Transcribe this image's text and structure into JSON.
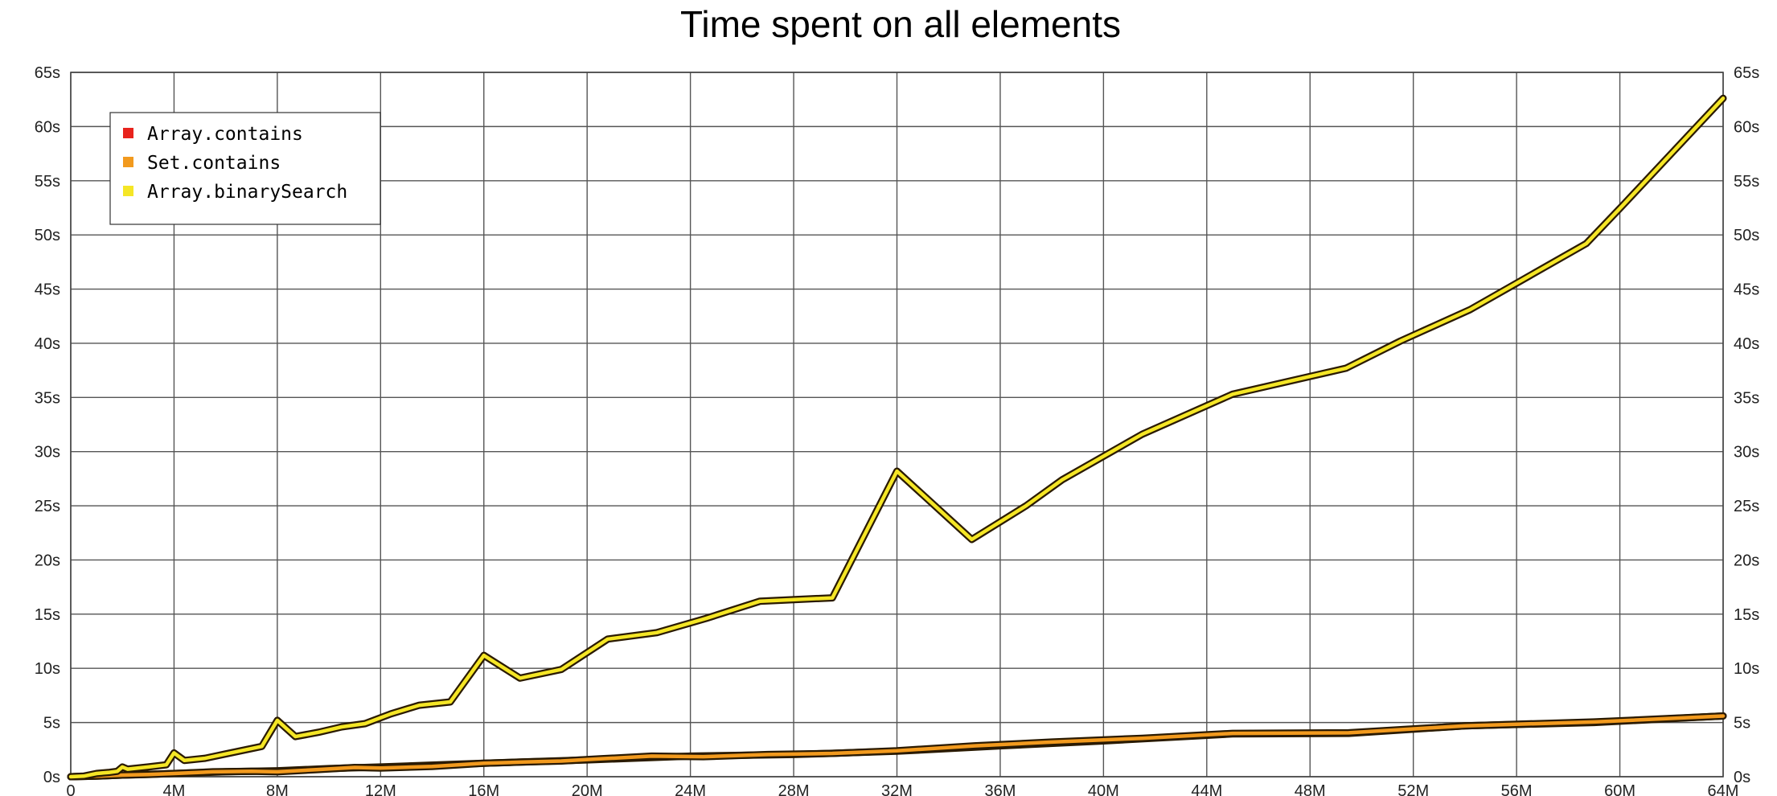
{
  "chart_data": {
    "type": "line",
    "title": "Time spent on all elements",
    "xlabel": "",
    "ylabel": "",
    "x_ticks": [
      "0",
      "4M",
      "8M",
      "12M",
      "16M",
      "20M",
      "24M",
      "28M",
      "32M",
      "36M",
      "40M",
      "44M",
      "48M",
      "52M",
      "56M",
      "60M",
      "64M"
    ],
    "y_ticks": [
      "0s",
      "5s",
      "10s",
      "15s",
      "20s",
      "25s",
      "30s",
      "35s",
      "40s",
      "45s",
      "50s",
      "55s",
      "60s",
      "65s"
    ],
    "xlim": [
      0,
      64000000
    ],
    "ylim": [
      0,
      65
    ],
    "grid": true,
    "legend_position": "top-left",
    "series": [
      {
        "name": "Array.contains",
        "color": "#e8231d",
        "x": [
          0,
          1000000,
          2000000,
          4000000,
          6000000,
          8000000,
          10000000,
          12000000,
          16000000,
          20000000,
          24000000,
          28000000,
          32000000,
          36000000,
          40000000,
          45000000,
          49500000,
          54000000,
          59000000,
          64000000
        ],
        "y": [
          0,
          0.05,
          0.15,
          0.3,
          0.45,
          0.55,
          0.75,
          0.9,
          1.25,
          1.55,
          1.9,
          2.05,
          2.35,
          2.85,
          3.3,
          3.95,
          4.0,
          4.7,
          5.0,
          5.6
        ]
      },
      {
        "name": "Set.contains",
        "color": "#f29a1e",
        "x": [
          0,
          1000000,
          2000000,
          3000000,
          4000000,
          5500000,
          7000000,
          8000000,
          9500000,
          11000000,
          12000000,
          14000000,
          16000000,
          17500000,
          19000000,
          20500000,
          22500000,
          24500000,
          27000000,
          29500000,
          32000000,
          35000000,
          38000000,
          41500000,
          45000000,
          49500000,
          54000000,
          59000000,
          64000000
        ],
        "y": [
          0,
          0.05,
          0.15,
          0.2,
          0.3,
          0.45,
          0.5,
          0.45,
          0.65,
          0.85,
          0.8,
          0.95,
          1.25,
          1.35,
          1.45,
          1.65,
          1.9,
          1.85,
          2.05,
          2.15,
          2.4,
          2.85,
          3.2,
          3.55,
          4.0,
          4.05,
          4.7,
          5.05,
          5.6
        ]
      },
      {
        "name": "Array.binarySearch",
        "color": "#f5e626",
        "x": [
          0,
          500000,
          1000000,
          1500000,
          1800000,
          2000000,
          2200000,
          3000000,
          3700000,
          4000000,
          4400000,
          5200000,
          6000000,
          7400000,
          8000000,
          8700000,
          9600000,
          10500000,
          11400000,
          12400000,
          13500000,
          14700000,
          16000000,
          17400000,
          19000000,
          20800000,
          22700000,
          24600000,
          26700000,
          29500000,
          32000000,
          34900000,
          37000000,
          38400000,
          41500000,
          45000000,
          49400000,
          51500000,
          54200000,
          58700000,
          60100000,
          64000000
        ],
        "y": [
          0,
          0.05,
          0.3,
          0.4,
          0.5,
          0.9,
          0.7,
          0.9,
          1.1,
          2.2,
          1.5,
          1.7,
          2.1,
          2.8,
          5.2,
          3.7,
          4.1,
          4.6,
          4.9,
          5.8,
          6.6,
          6.9,
          11.2,
          9.1,
          9.9,
          12.7,
          13.3,
          14.6,
          16.2,
          16.5,
          28.2,
          21.9,
          25.0,
          27.4,
          31.6,
          35.3,
          37.7,
          40.2,
          43.1,
          49.2,
          52.7,
          62.6
        ]
      }
    ]
  }
}
